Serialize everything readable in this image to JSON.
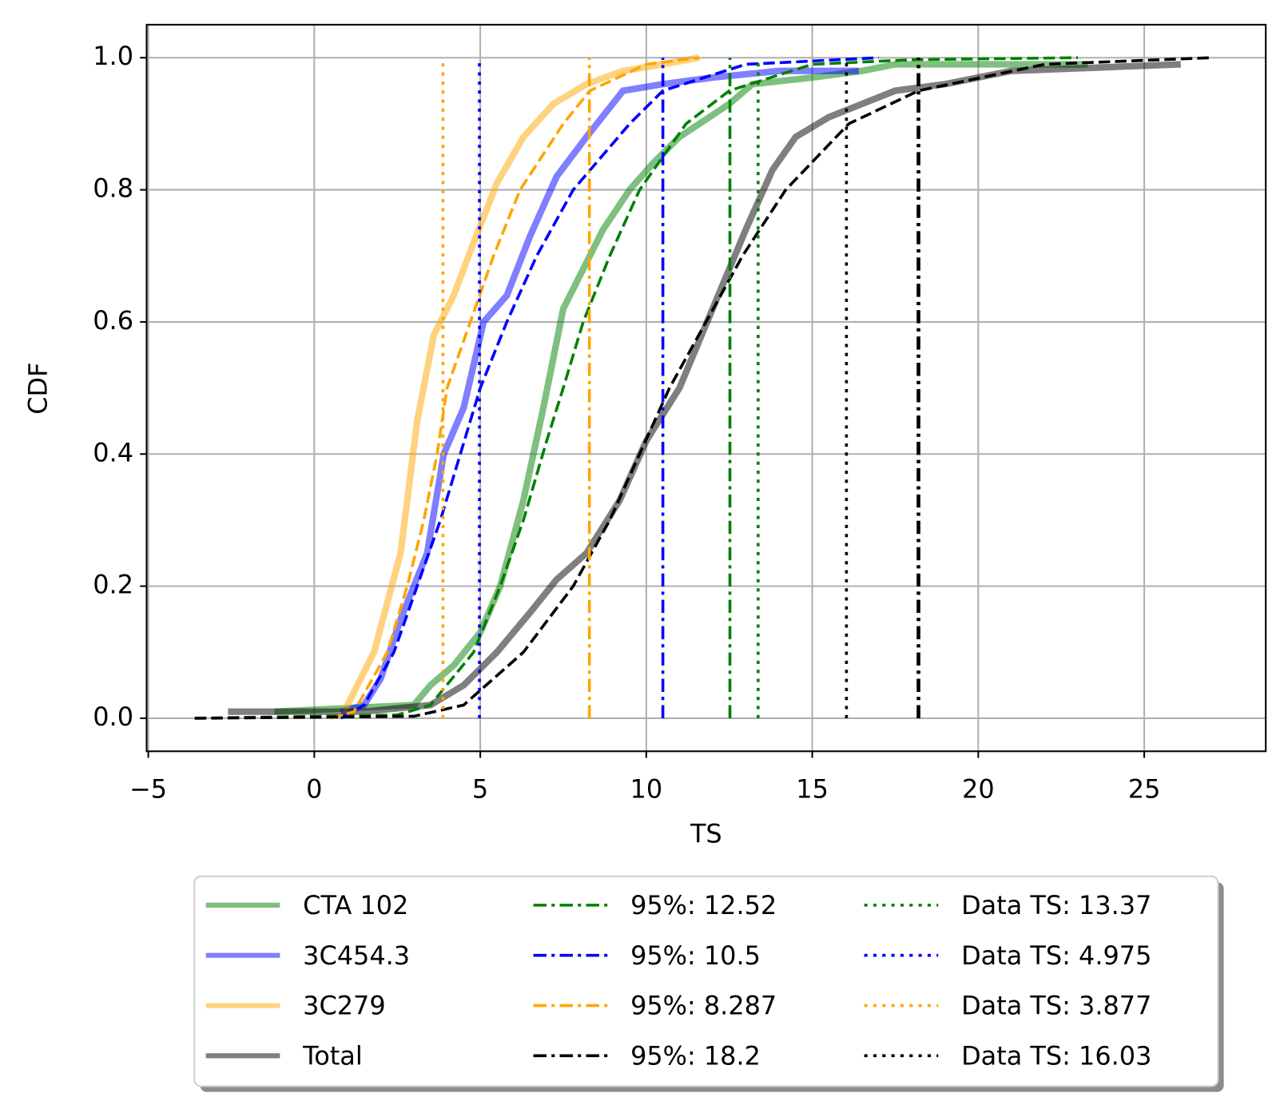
{
  "chart_data": {
    "type": "line",
    "x_label": "TS",
    "y_label": "CDF",
    "xlim": [
      -5.05,
      28.66
    ],
    "ylim": [
      -0.05,
      1.05
    ],
    "xticks": [
      {
        "value": -5,
        "label": "−5"
      },
      0,
      5,
      10,
      15,
      20,
      25
    ],
    "yticks": [
      {
        "value": 0,
        "label": "0.0"
      },
      0.2,
      0.4,
      0.6,
      0.8,
      {
        "value": 1,
        "label": "1.0"
      }
    ],
    "grid": true,
    "series": [
      {
        "name": "CTA 102",
        "color": "#008000",
        "alpha": 0.5,
        "style": "solid",
        "x": [
          -1.2,
          3.0,
          3.5,
          4.2,
          5.0,
          5.6,
          6.3,
          6.9,
          7.5,
          8.0,
          8.7,
          9.5,
          10.2,
          11.0,
          12.5,
          13.2,
          15.0,
          16.5,
          17.5,
          23.3
        ],
        "y": [
          0.01,
          0.02,
          0.05,
          0.08,
          0.13,
          0.2,
          0.33,
          0.47,
          0.62,
          0.67,
          0.74,
          0.8,
          0.84,
          0.88,
          0.93,
          0.96,
          0.97,
          0.98,
          0.99,
          0.99
        ]
      },
      {
        "name": "3C454.3",
        "color": "#0000ff",
        "alpha": 0.5,
        "style": "solid",
        "x": [
          0.8,
          1.5,
          2.0,
          2.6,
          3.4,
          3.9,
          4.5,
          5.1,
          5.8,
          6.5,
          7.3,
          8.2,
          9.3,
          10.5,
          12.0,
          14.0,
          16.4
        ],
        "y": [
          0.01,
          0.02,
          0.06,
          0.15,
          0.25,
          0.4,
          0.47,
          0.6,
          0.64,
          0.73,
          0.82,
          0.88,
          0.95,
          0.96,
          0.97,
          0.98,
          0.98
        ]
      },
      {
        "name": "3C279",
        "color": "#ffa500",
        "alpha": 0.5,
        "style": "solid",
        "x": [
          0.9,
          1.8,
          2.6,
          3.1,
          3.6,
          4.2,
          4.8,
          5.5,
          6.3,
          7.2,
          8.2,
          9.3,
          10.5,
          11.6
        ],
        "y": [
          0.01,
          0.1,
          0.25,
          0.45,
          0.58,
          0.64,
          0.72,
          0.81,
          0.88,
          0.93,
          0.96,
          0.98,
          0.99,
          1.0
        ]
      },
      {
        "name": "Total",
        "color": "#000000",
        "alpha": 0.5,
        "style": "solid",
        "x": [
          -2.6,
          1.5,
          3.5,
          4.5,
          5.5,
          6.5,
          7.3,
          8.2,
          9.2,
          10.0,
          11.0,
          12.0,
          13.0,
          13.8,
          14.5,
          15.5,
          16.5,
          17.5,
          19,
          21,
          26.1
        ],
        "y": [
          0.01,
          0.01,
          0.02,
          0.05,
          0.1,
          0.16,
          0.21,
          0.25,
          0.33,
          0.42,
          0.5,
          0.62,
          0.74,
          0.83,
          0.88,
          0.91,
          0.93,
          0.95,
          0.96,
          0.98,
          0.99
        ]
      },
      {
        "color": "#008000",
        "alpha": 1,
        "style": "dashed",
        "x": [
          -3.6,
          2.5,
          3.5,
          4.8,
          5.6,
          6.3,
          7.0,
          7.5,
          8.1,
          8.9,
          9.8,
          11.2,
          12.5,
          15.0,
          18.0,
          23.0
        ],
        "y": [
          0,
          0.005,
          0.02,
          0.1,
          0.2,
          0.3,
          0.42,
          0.5,
          0.6,
          0.7,
          0.8,
          0.9,
          0.95,
          0.99,
          0.997,
          1.0
        ]
      },
      {
        "color": "#0000ff",
        "alpha": 1,
        "style": "dashed",
        "x": [
          0.8,
          1.5,
          2.4,
          3.1,
          3.8,
          4.4,
          5.0,
          5.8,
          6.7,
          7.8,
          9.5,
          10.5,
          13.0,
          17.0
        ],
        "y": [
          0,
          0.02,
          0.1,
          0.2,
          0.3,
          0.4,
          0.5,
          0.6,
          0.7,
          0.8,
          0.9,
          0.95,
          0.99,
          1.0
        ]
      },
      {
        "color": "#ffa500",
        "alpha": 1,
        "style": "dashed",
        "x": [
          0.5,
          1.2,
          2.2,
          2.8,
          3.3,
          3.7,
          4.0,
          4.7,
          5.4,
          6.2,
          7.5,
          8.3,
          10.0,
          11.6
        ],
        "y": [
          0,
          0.01,
          0.1,
          0.2,
          0.3,
          0.4,
          0.5,
          0.6,
          0.7,
          0.8,
          0.9,
          0.95,
          0.99,
          1.0
        ]
      },
      {
        "color": "#000000",
        "alpha": 1,
        "style": "dashed",
        "x": [
          -3.6,
          3.0,
          4.5,
          6.3,
          7.8,
          8.9,
          9.8,
          10.7,
          11.8,
          12.9,
          14.2,
          16.1,
          18.2,
          22.0,
          27.0
        ],
        "y": [
          0,
          0.003,
          0.02,
          0.1,
          0.2,
          0.3,
          0.4,
          0.5,
          0.6,
          0.7,
          0.8,
          0.9,
          0.95,
          0.99,
          1.0
        ]
      }
    ],
    "vlines": [
      {
        "name": "95%: 12.52",
        "x": 12.52,
        "color": "#008000",
        "style": "dashdot"
      },
      {
        "name": "95%: 10.5",
        "x": 10.5,
        "color": "#0000ff",
        "style": "dashdot"
      },
      {
        "name": "95%: 8.287",
        "x": 8.287,
        "color": "#ffa500",
        "style": "dashdot"
      },
      {
        "name": "95%: 18.2",
        "x": 18.2,
        "color": "#000000",
        "style": "dashdot"
      },
      {
        "name": "Data TS: 13.37",
        "x": 13.37,
        "color": "#008000",
        "style": "dotted"
      },
      {
        "name": "Data TS: 4.975",
        "x": 4.975,
        "color": "#0000ff",
        "style": "dotted"
      },
      {
        "name": "Data TS: 3.877",
        "x": 3.877,
        "color": "#ffa500",
        "style": "dotted"
      },
      {
        "name": "Data TS: 16.03",
        "x": 16.03,
        "color": "#000000",
        "style": "dotted"
      }
    ],
    "legend": "lower center outside"
  }
}
